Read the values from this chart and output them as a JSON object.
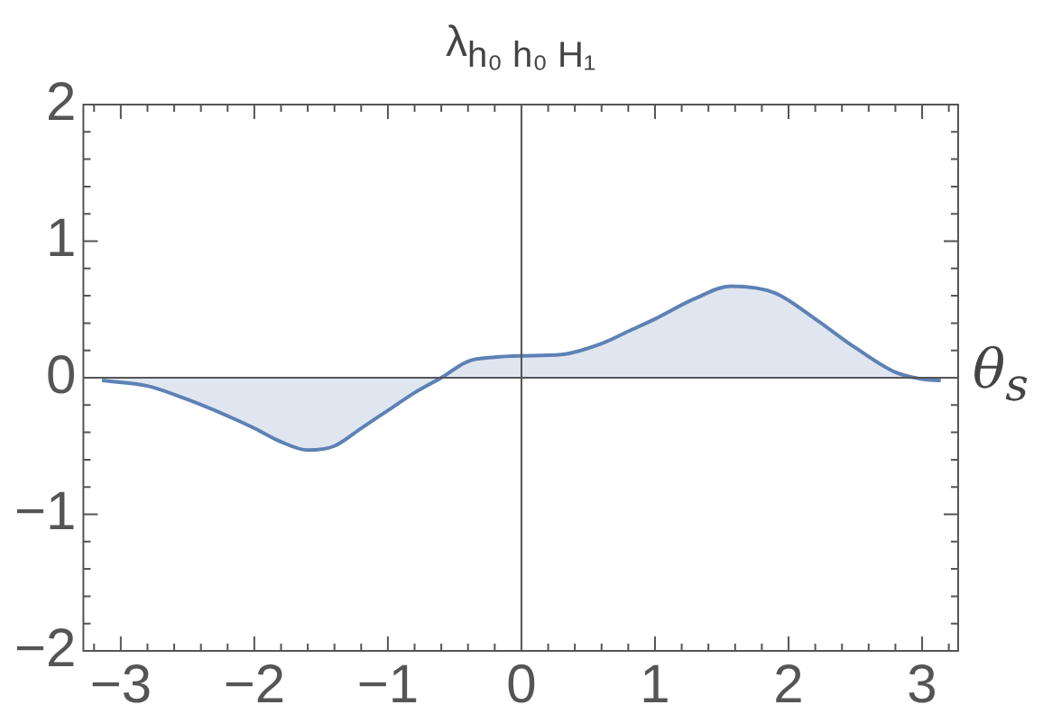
{
  "chart_data": {
    "type": "area",
    "title": "λ$_{h₀ h₀ H₁}$",
    "xlabel": "θ$_{s}$",
    "x": [
      -3.14,
      -2.8,
      -2.5,
      -2.2,
      -2,
      -1.8,
      -1.6,
      -1.4,
      -1.2,
      -1,
      -0.8,
      -0.6,
      -0.4,
      -0.2,
      0,
      0.3,
      0.6,
      0.8,
      1,
      1.3,
      1.57,
      1.9,
      2.2,
      2.5,
      2.8,
      3,
      3.14
    ],
    "series": [
      {
        "color": "#5e81b5",
        "values": [
          -0.02,
          -0.06,
          -0.16,
          -0.28,
          -0.37,
          -0.47,
          -0.53,
          -0.5,
          -0.37,
          -0.24,
          -0.11,
          0,
          0.12,
          0.15,
          0.16,
          0.17,
          0.25,
          0.34,
          0.43,
          0.58,
          0.67,
          0.62,
          0.43,
          0.22,
          0.04,
          -0.01,
          -0.02
        ]
      }
    ],
    "xlim": [
      -3.28,
      3.27
    ],
    "ylim": [
      -2,
      2
    ],
    "xticks": [
      -3,
      -2,
      -1,
      0,
      1,
      2,
      3
    ],
    "yticks": [
      -2,
      -1,
      0,
      1,
      2
    ],
    "legend": false
  }
}
